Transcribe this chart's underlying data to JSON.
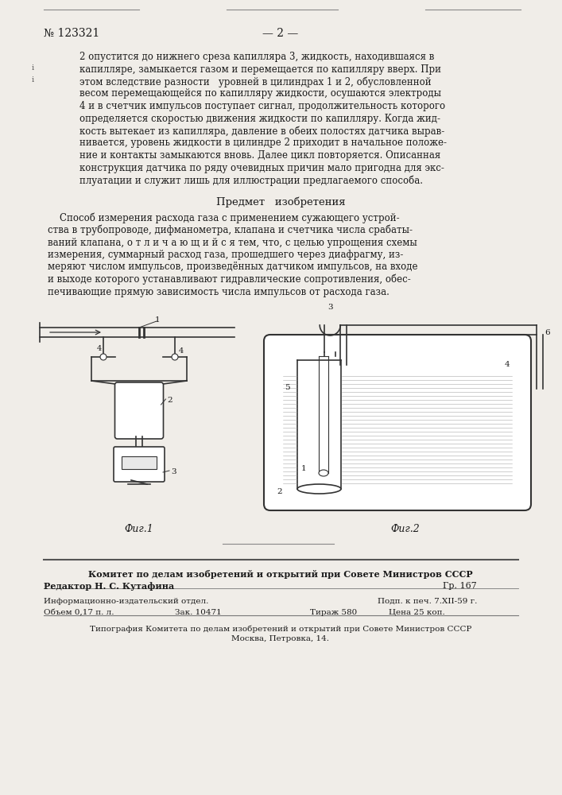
{
  "bg_color": "#f0ede8",
  "text_color": "#1a1a1a",
  "patent_number": "№ 123321",
  "page_number": "— 2 —",
  "body_lines": [
    "2 опустится до нижнего среза капилляра 3, жидкость, находившаяся в",
    "капилляре, замыкается газом и перемещается по капилляру вверх. При",
    "этом вследствие разности   уровней в цилиндрах 1 и 2, обусловленной",
    "весом перемещающейся по капилляру жидкости, осушаются электроды",
    "4 и в счетчик импульсов поступает сигнал, продолжительность которого",
    "определяется скоростью движения жидкости по капилляру. Когда жид-",
    "кость вытекает из капилляра, давление в обеих полостях датчика вырав-",
    "нивается, уровень жидкости в цилиндре 2 приходит в начальное положе-",
    "ние и контакты замыкаются вновь. Далее цикл повторяется. Описанная",
    "конструкция датчика по ряду очевидных причин мало пригодна для экс-",
    "плуатации и служит лишь для иллюстрации предлагаемого способа."
  ],
  "subject_header": "Предмет   изобретения",
  "subject_lines": [
    "    Способ измерения расхода газа с применением сужающего устрой-",
    "ства в трубопроводе, дифманометра, клапана и счетчика числа срабаты-",
    "ваний клапана, о т л и ч а ю щ и й с я тем, что, с целью упрощения схемы",
    "измерения, суммарный расход газа, прошедшего через диафрагму, из-",
    "меряют числом импульсов, произведённых датчиком импульсов, на входе",
    "и выходе которого устанавливают гидравлические сопротивления, обес-",
    "печивающие прямую зависимость числа импульсов от расхода газа."
  ],
  "fig1_label": "Фиг.1",
  "fig2_label": "Фиг.2",
  "footer_committee": "Комитет по делам изобретений и открытий при Совете Министров СССР",
  "footer_editor": "Редактор Н. С. Кутафина",
  "footer_gr": "Гр. 167",
  "footer_info_dept": "Информационно-издательский отдел.",
  "footer_volume": "Объем 0,17 п. л.",
  "footer_order": "Зак. 10471",
  "footer_tirazh": "Тираж 580",
  "footer_price": "Цена 25 коп.",
  "footer_typography": "Типография Комитета по делам изобретений и открытий при Совете Министров СССР",
  "footer_address": "Москва, Петровка, 14.",
  "footer_sign": "Подп. к печ. 7.XII-59 г."
}
